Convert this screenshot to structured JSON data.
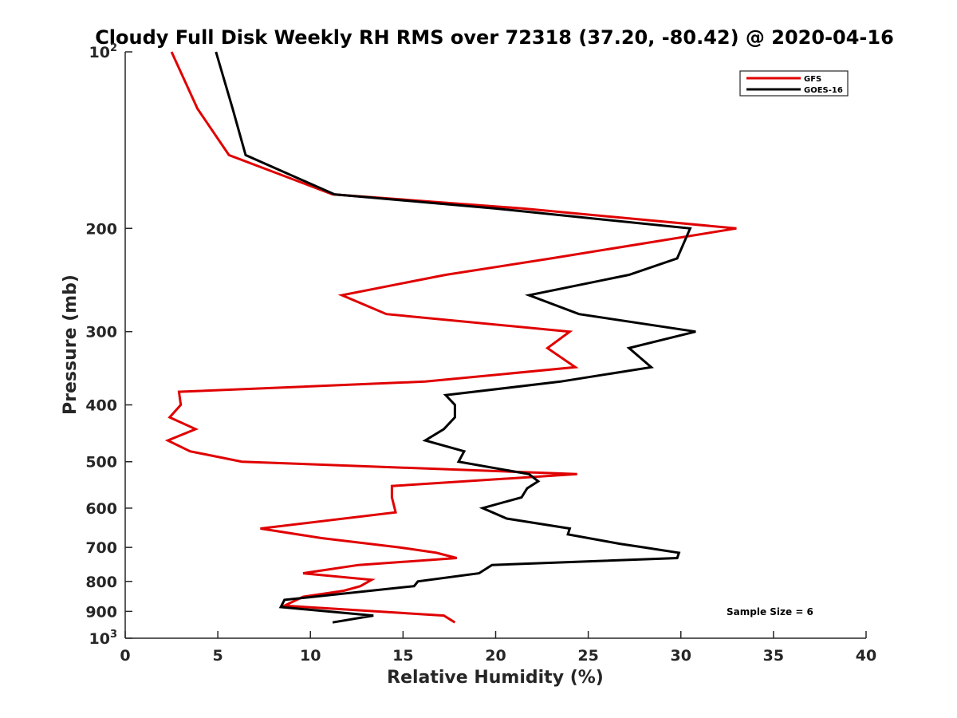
{
  "chart_data": {
    "type": "line",
    "title": "Cloudy Full Disk Weekly RH RMS over 72318 (37.20, -80.42) @ 2020-04-16",
    "xlabel": "Relative Humidity (%)",
    "ylabel": "Pressure (mb)",
    "xlim": [
      0,
      40
    ],
    "ylim": [
      100,
      1000
    ],
    "yscale": "log",
    "y_reversed": true,
    "grid": false,
    "legend_position": "top-right",
    "x_ticks": [
      "0",
      "5",
      "10",
      "15",
      "20",
      "25",
      "30",
      "35",
      "40"
    ],
    "y_ticks": [
      {
        "value": 100,
        "label": "10",
        "sup": "2"
      },
      {
        "value": 200,
        "label": "200"
      },
      {
        "value": 300,
        "label": "300"
      },
      {
        "value": 400,
        "label": "400"
      },
      {
        "value": 500,
        "label": "500"
      },
      {
        "value": 600,
        "label": "600"
      },
      {
        "value": 700,
        "label": "700"
      },
      {
        "value": 800,
        "label": "800"
      },
      {
        "value": 900,
        "label": "900"
      },
      {
        "value": 1000,
        "label": "10",
        "sup": "3"
      }
    ],
    "series": [
      {
        "name": "GFS",
        "color": "#e00000",
        "points": [
          [
            2.5,
            100
          ],
          [
            3.9,
            125
          ],
          [
            5.6,
            150
          ],
          [
            11.2,
            175
          ],
          [
            21.5,
            185
          ],
          [
            33.0,
            200
          ],
          [
            23.0,
            225
          ],
          [
            17.3,
            240
          ],
          [
            11.7,
            260
          ],
          [
            14.1,
            280
          ],
          [
            24.0,
            300
          ],
          [
            22.8,
            320
          ],
          [
            24.3,
            345
          ],
          [
            16.2,
            365
          ],
          [
            2.9,
            380
          ],
          [
            3.0,
            400
          ],
          [
            2.4,
            420
          ],
          [
            3.8,
            440
          ],
          [
            2.3,
            460
          ],
          [
            3.5,
            480
          ],
          [
            6.3,
            500
          ],
          [
            24.4,
            525
          ],
          [
            14.4,
            550
          ],
          [
            14.4,
            575
          ],
          [
            14.6,
            610
          ],
          [
            7.3,
            650
          ],
          [
            10.6,
            675
          ],
          [
            14.8,
            700
          ],
          [
            16.8,
            715
          ],
          [
            17.9,
            730
          ],
          [
            12.6,
            750
          ],
          [
            9.6,
            775
          ],
          [
            13.3,
            795
          ],
          [
            12.7,
            815
          ],
          [
            11.8,
            830
          ],
          [
            9.6,
            850
          ],
          [
            8.6,
            880
          ],
          [
            17.2,
            915
          ],
          [
            17.8,
            940
          ]
        ]
      },
      {
        "name": "GOES-16",
        "color": "#000000",
        "points": [
          [
            4.9,
            100
          ],
          [
            5.8,
            125
          ],
          [
            6.5,
            150
          ],
          [
            11.3,
            175
          ],
          [
            20.0,
            185
          ],
          [
            30.5,
            200
          ],
          [
            29.8,
            225
          ],
          [
            27.2,
            240
          ],
          [
            21.8,
            260
          ],
          [
            24.5,
            280
          ],
          [
            30.8,
            300
          ],
          [
            27.2,
            320
          ],
          [
            28.4,
            345
          ],
          [
            23.5,
            365
          ],
          [
            17.3,
            385
          ],
          [
            17.8,
            400
          ],
          [
            17.8,
            420
          ],
          [
            17.2,
            440
          ],
          [
            16.2,
            460
          ],
          [
            18.3,
            480
          ],
          [
            18.0,
            500
          ],
          [
            21.8,
            525
          ],
          [
            22.3,
            540
          ],
          [
            21.7,
            555
          ],
          [
            21.4,
            575
          ],
          [
            19.3,
            600
          ],
          [
            20.6,
            625
          ],
          [
            24.0,
            650
          ],
          [
            23.9,
            665
          ],
          [
            26.7,
            690
          ],
          [
            28.0,
            700
          ],
          [
            29.9,
            715
          ],
          [
            29.8,
            730
          ],
          [
            19.8,
            750
          ],
          [
            19.1,
            775
          ],
          [
            15.8,
            800
          ],
          [
            15.6,
            815
          ],
          [
            8.6,
            860
          ],
          [
            8.4,
            885
          ],
          [
            13.4,
            915
          ],
          [
            11.2,
            940
          ]
        ]
      }
    ],
    "annotations": [
      "Sample Size = 6"
    ]
  }
}
